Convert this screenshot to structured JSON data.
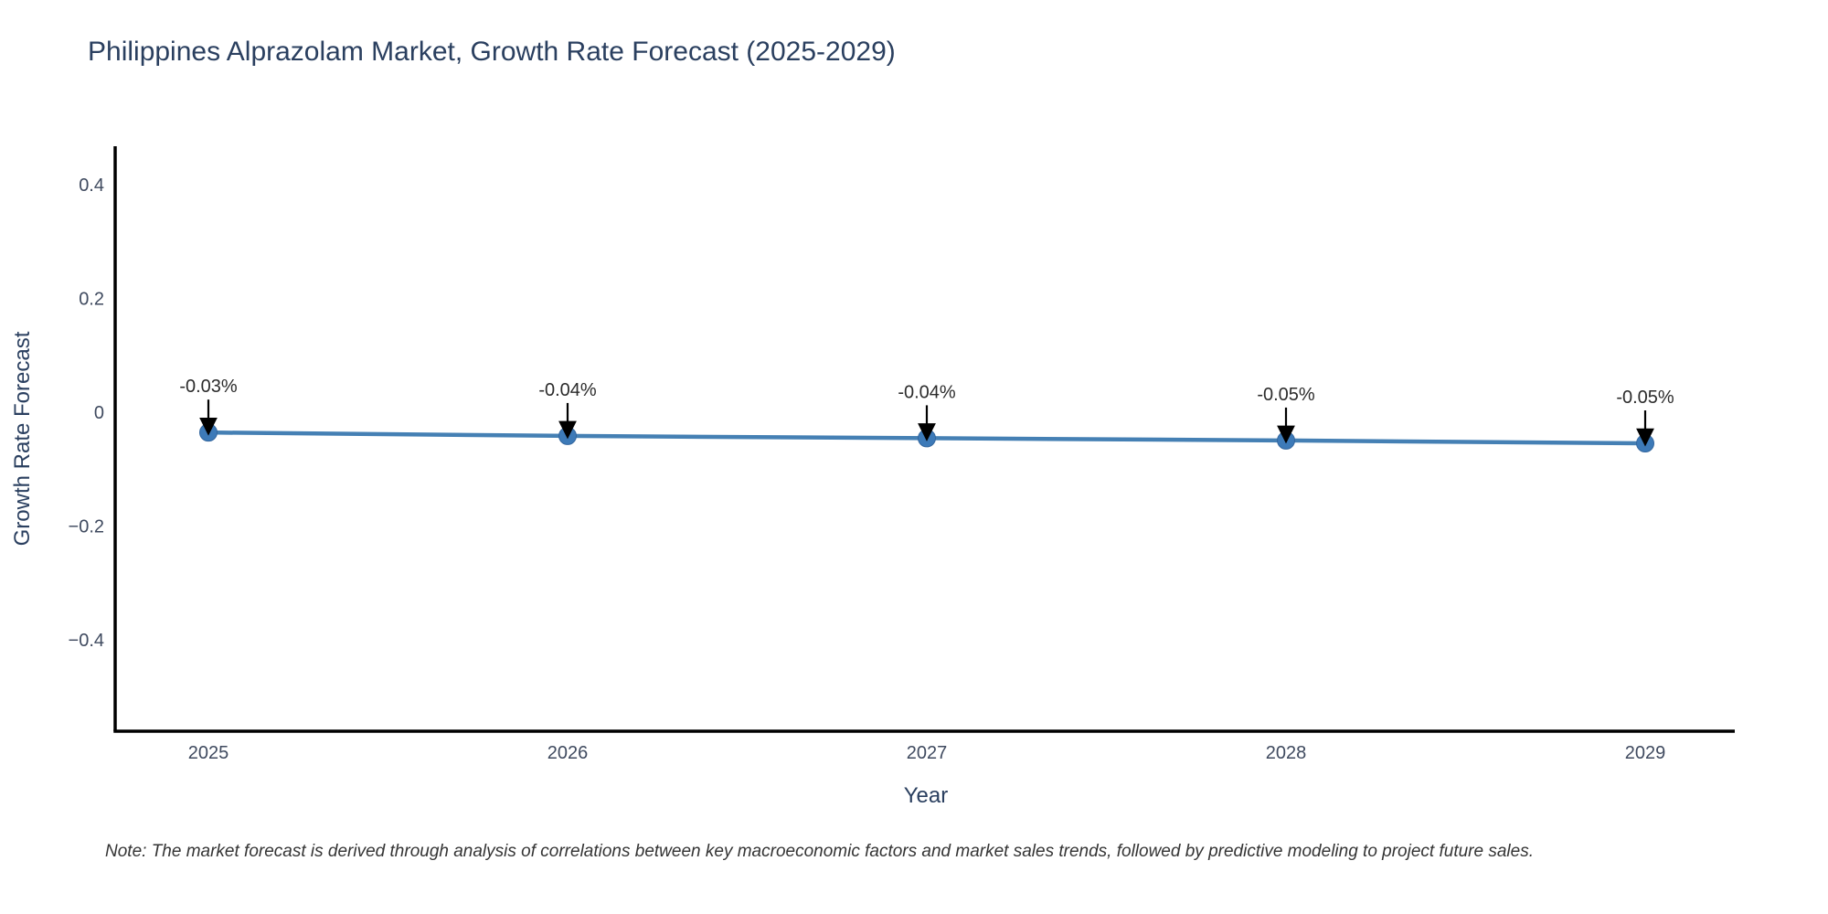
{
  "chart": {
    "title": "Philippines Alprazolam Market, Growth Rate Forecast (2025-2029)",
    "x_axis_title": "Year",
    "y_axis_title": "Growth Rate Forecast",
    "note": "Note: The market forecast is derived through analysis of correlations between key macroeconomic factors and market sales trends, followed by predictive modeling to project future sales."
  },
  "chart_data": {
    "type": "line",
    "title": "Philippines Alprazolam Market, Growth Rate Forecast (2025-2029)",
    "xlabel": "Year",
    "ylabel": "Growth Rate Forecast",
    "x": [
      2025,
      2026,
      2027,
      2028,
      2029
    ],
    "x_tick_labels": [
      "2025",
      "2026",
      "2027",
      "2028",
      "2029"
    ],
    "values": [
      -0.03,
      -0.04,
      -0.04,
      -0.05,
      -0.05
    ],
    "values_plotted_est": [
      -0.034,
      -0.04,
      -0.044,
      -0.048,
      -0.053
    ],
    "annotations": [
      "-0.03%",
      "-0.04%",
      "-0.04%",
      "-0.05%",
      "-0.05%"
    ],
    "y_ticks": [
      0.4,
      0.2,
      0,
      -0.2,
      -0.4
    ],
    "y_tick_labels": [
      "0.4",
      "0.2",
      "0",
      "−0.2",
      "−0.4"
    ],
    "ylim": [
      -0.56,
      0.47
    ],
    "grid": false,
    "legend": "none",
    "marker_symbol": "circle",
    "annotation_arrow": "down-arrow",
    "colors": {
      "line": "#4580b4",
      "marker_fill": "#3d7ab8",
      "marker_edge": "#33669e",
      "arrow": "#000000",
      "axis_line": "#000000",
      "title_text": "#2a3f5f",
      "tick_text": "#3f4a5f",
      "annotation_text": "#2b2b2b",
      "note_text": "#343434",
      "background": "#ffffff"
    }
  }
}
